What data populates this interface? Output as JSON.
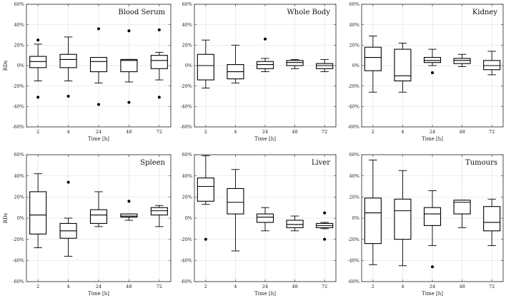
{
  "chart_data": [
    {
      "type": "box",
      "title": "Blood Serum",
      "xlabel": "",
      "ylabel": "RDs",
      "ylim": [
        -60,
        60
      ],
      "yticks": [
        "-60%",
        "-40%",
        "-20%",
        "0%",
        "20%",
        "40%",
        "60%"
      ],
      "categories": [
        "2",
        "4",
        "24",
        "48",
        "72"
      ],
      "boxes": [
        {
          "whisker_low": -15,
          "q1": -2,
          "median": 4,
          "q3": 9,
          "whisker_high": 21,
          "outliers": [
            -31,
            25
          ]
        },
        {
          "whisker_low": -15,
          "q1": -2,
          "median": 6,
          "q3": 11,
          "whisker_high": 28,
          "outliers": [
            -30
          ]
        },
        {
          "whisker_low": -17,
          "q1": -6,
          "median": 4,
          "q3": 8,
          "whisker_high": 8,
          "outliers": [
            -38,
            36
          ]
        },
        {
          "whisker_low": -16,
          "q1": -6,
          "median": 5,
          "q3": 6,
          "whisker_high": 6,
          "outliers": [
            -36,
            34
          ]
        },
        {
          "whisker_low": -14,
          "q1": -3,
          "median": 5,
          "q3": 10,
          "whisker_high": 13,
          "outliers": [
            -31,
            35
          ]
        }
      ]
    },
    {
      "type": "box",
      "title": "Whole Body",
      "xlabel": "",
      "ylabel": "",
      "ylim": [
        -60,
        60
      ],
      "yticks": [
        "-60%",
        "-40%",
        "-20%",
        "0%",
        "20%",
        "40%",
        "60%"
      ],
      "categories": [
        "2",
        "4",
        "24",
        "48",
        "72"
      ],
      "boxes": [
        {
          "whisker_low": -22,
          "q1": -14,
          "median": 0,
          "q3": 11,
          "whisker_high": 25,
          "outliers": []
        },
        {
          "whisker_low": -17,
          "q1": -13,
          "median": -6,
          "q3": 1,
          "whisker_high": 20,
          "outliers": []
        },
        {
          "whisker_low": -6,
          "q1": -3,
          "median": 1,
          "q3": 4,
          "whisker_high": 7,
          "outliers": [
            26
          ]
        },
        {
          "whisker_low": -3,
          "q1": 0,
          "median": 3,
          "q3": 5,
          "whisker_high": 6,
          "outliers": []
        },
        {
          "whisker_low": -6,
          "q1": -3,
          "median": 0,
          "q3": 2,
          "whisker_high": 6,
          "outliers": []
        }
      ]
    },
    {
      "type": "box",
      "title": "Kidney",
      "xlabel": "",
      "ylabel": "",
      "ylim": [
        -60,
        60
      ],
      "yticks": [
        "-60%",
        "-40%",
        "-20%",
        "0%",
        "20%",
        "40%",
        "60%"
      ],
      "categories": [
        "2",
        "4",
        "24",
        "48",
        "72"
      ],
      "boxes": [
        {
          "whisker_low": -26,
          "q1": -5,
          "median": 8,
          "q3": 18,
          "whisker_high": 29,
          "outliers": []
        },
        {
          "whisker_low": -26,
          "q1": -15,
          "median": -10,
          "q3": 16,
          "whisker_high": 22,
          "outliers": []
        },
        {
          "whisker_low": 0,
          "q1": 3,
          "median": 5,
          "q3": 8,
          "whisker_high": 16,
          "outliers": [
            -7
          ]
        },
        {
          "whisker_low": -1,
          "q1": 2,
          "median": 5,
          "q3": 7,
          "whisker_high": 11,
          "outliers": []
        },
        {
          "whisker_low": -9,
          "q1": -4,
          "median": 0,
          "q3": 5,
          "whisker_high": 14,
          "outliers": []
        }
      ]
    },
    {
      "type": "box",
      "title": "Spleen",
      "xlabel": "Time [h]",
      "ylabel": "RDs",
      "ylim": [
        -60,
        60
      ],
      "yticks": [
        "-60%",
        "-40%",
        "-20%",
        "0%",
        "20%",
        "40%",
        "60%"
      ],
      "categories": [
        "2",
        "4",
        "24",
        "48",
        "72"
      ],
      "boxes": [
        {
          "whisker_low": -28,
          "q1": -15,
          "median": 3,
          "q3": 25,
          "whisker_high": 42,
          "outliers": []
        },
        {
          "whisker_low": -36,
          "q1": -19,
          "median": -12,
          "q3": -5,
          "whisker_high": 0,
          "outliers": [
            34
          ]
        },
        {
          "whisker_low": -8,
          "q1": -5,
          "median": 3,
          "q3": 8,
          "whisker_high": 25,
          "outliers": []
        },
        {
          "whisker_low": -2,
          "q1": 1,
          "median": 2,
          "q3": 4,
          "whisker_high": 4,
          "outliers": [
            16
          ]
        },
        {
          "whisker_low": -8,
          "q1": 3,
          "median": 7,
          "q3": 10,
          "whisker_high": 12,
          "outliers": []
        }
      ]
    },
    {
      "type": "box",
      "title": "Liver",
      "xlabel": "Time [h]",
      "ylabel": "",
      "ylim": [
        -60,
        60
      ],
      "yticks": [
        "-60%",
        "-40%",
        "-20%",
        "0%",
        "20%",
        "40%",
        "60%"
      ],
      "categories": [
        "2",
        "4",
        "24",
        "48",
        "72"
      ],
      "boxes": [
        {
          "whisker_low": 13,
          "q1": 16,
          "median": 30,
          "q3": 38,
          "whisker_high": 59,
          "outliers": [
            -20
          ]
        },
        {
          "whisker_low": -31,
          "q1": 4,
          "median": 15,
          "q3": 28,
          "whisker_high": 46,
          "outliers": []
        },
        {
          "whisker_low": -12,
          "q1": -4,
          "median": 1,
          "q3": 4,
          "whisker_high": 10,
          "outliers": []
        },
        {
          "whisker_low": -12,
          "q1": -9,
          "median": -6,
          "q3": -2,
          "whisker_high": 2,
          "outliers": []
        },
        {
          "whisker_low": -10,
          "q1": -9,
          "median": -7,
          "q3": -5,
          "whisker_high": -4,
          "outliers": [
            -20,
            5
          ]
        }
      ]
    },
    {
      "type": "box",
      "title": "Tumours",
      "xlabel": "Time [h]",
      "ylabel": "",
      "ylim": [
        -60,
        60
      ],
      "yticks": [
        "-60%",
        "-40%",
        "-20%",
        "0%",
        "20%",
        "40%",
        "60%"
      ],
      "categories": [
        "2",
        "4",
        "24",
        "48",
        "72"
      ],
      "boxes": [
        {
          "whisker_low": -44,
          "q1": -24,
          "median": 5,
          "q3": 19,
          "whisker_high": 55,
          "outliers": []
        },
        {
          "whisker_low": -45,
          "q1": -20,
          "median": 7,
          "q3": 18,
          "whisker_high": 45,
          "outliers": []
        },
        {
          "whisker_low": -26,
          "q1": -7,
          "median": 4,
          "q3": 10,
          "whisker_high": 26,
          "outliers": [
            -46
          ]
        },
        {
          "whisker_low": -9,
          "q1": 4,
          "median": 15,
          "q3": 17,
          "whisker_high": 17,
          "outliers": []
        },
        {
          "whisker_low": -26,
          "q1": -12,
          "median": -4,
          "q3": 11,
          "whisker_high": 18,
          "outliers": []
        }
      ]
    }
  ]
}
